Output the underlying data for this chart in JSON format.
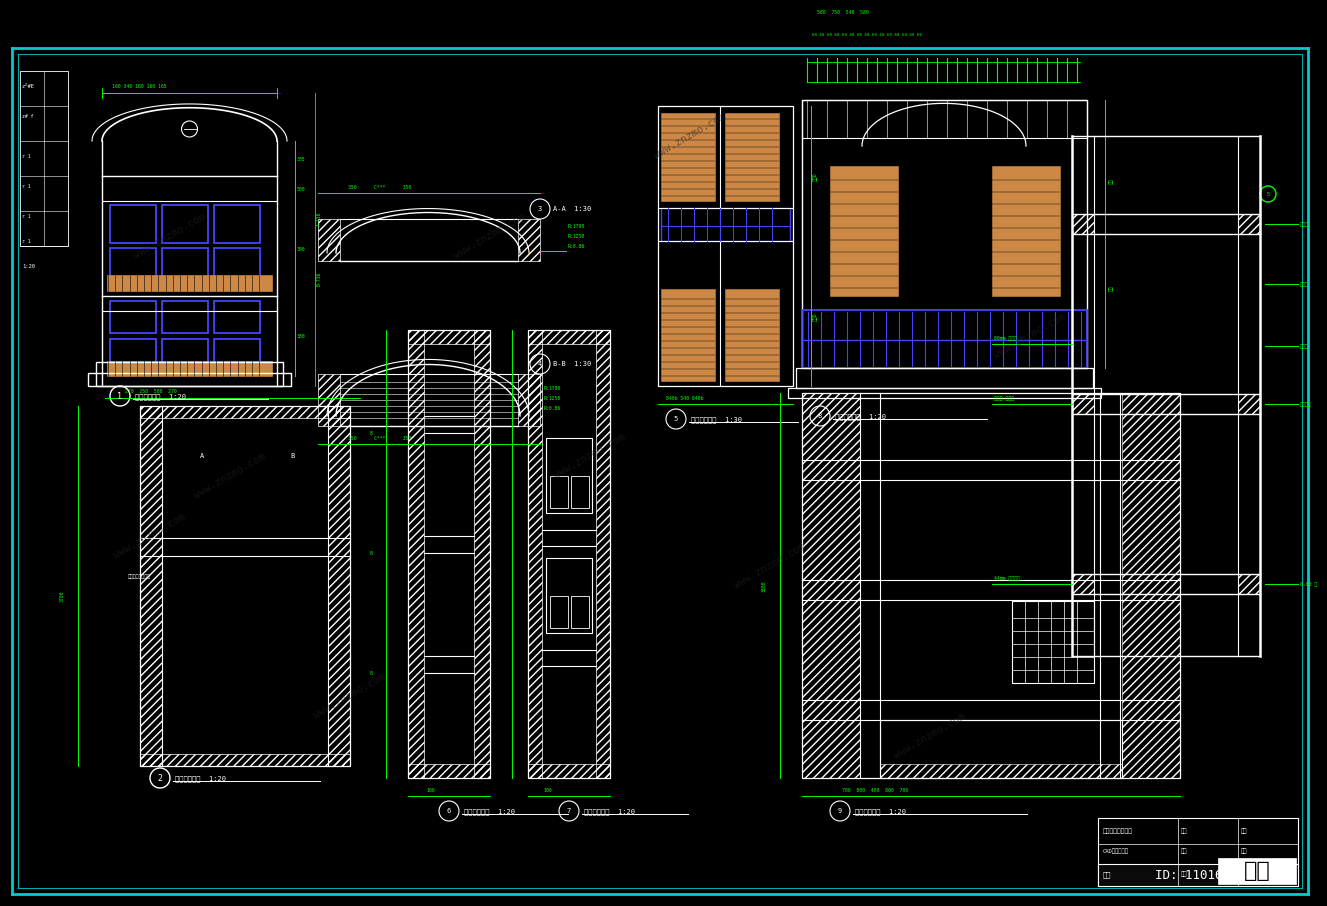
{
  "bg_color": "#000000",
  "white": "#ffffff",
  "green": "#00ff00",
  "blue": "#0000ff",
  "cyan": "#00cccc",
  "orange": "#cc8844",
  "light_blue": "#4444ff",
  "dim_green": "#00cc00",
  "id_text": "ID: 1101686445",
  "logo_text": "知末",
  "watermark": "www.znzmo.com"
}
